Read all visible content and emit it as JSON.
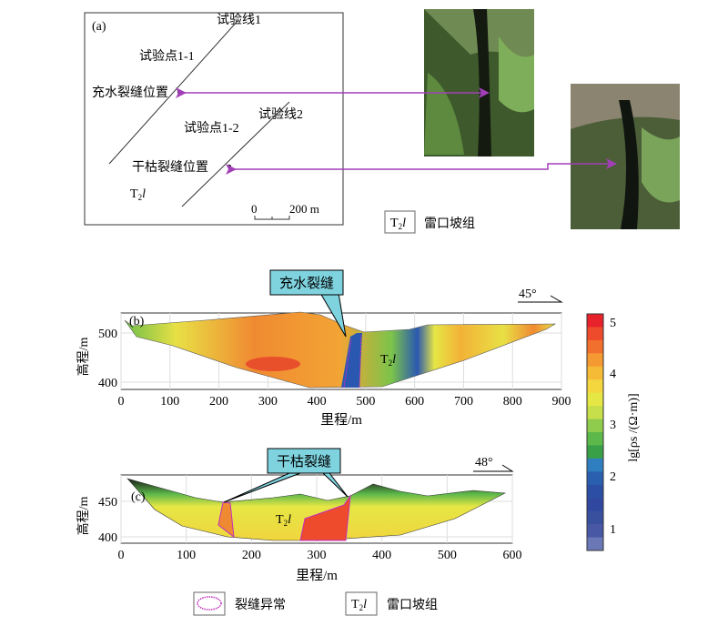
{
  "panel_a": {
    "label": "(a)",
    "line1": "试验线1",
    "line2": "试验线2",
    "point1": "试验点1-1",
    "point2": "试验点1-2",
    "fracture_wet": "充水裂缝位置",
    "fracture_dry": "干枯裂缝位置",
    "strata": "T",
    "strata_sub": "2",
    "strata_ital": "l",
    "scale_zero": "0",
    "scale_end": "200 m"
  },
  "legend_top": {
    "symbol": "T",
    "sub": "2",
    "ital": "l",
    "text": "雷口坡组"
  },
  "panel_b": {
    "label": "(b)",
    "callout": "充水裂缝",
    "dip": "45°",
    "strata": "T",
    "strata_sub": "2",
    "strata_ital": "l",
    "ylabel": "高程/m",
    "xlabel": "里程/m",
    "xticks": [
      "0",
      "100",
      "200",
      "300",
      "400",
      "500",
      "600",
      "700",
      "800",
      "900"
    ],
    "yticks": [
      "500",
      "400"
    ]
  },
  "panel_c": {
    "label": "(c)",
    "callout": "干枯裂缝",
    "dip": "48°",
    "strata": "T",
    "strata_sub": "2",
    "strata_ital": "l",
    "ylabel": "高程/m",
    "xlabel": "里程/m",
    "xticks": [
      "0",
      "100",
      "200",
      "300",
      "400",
      "500",
      "600"
    ],
    "yticks": [
      "450",
      "400"
    ]
  },
  "colorbar": {
    "label": "lg[ρs /(Ω·m)]",
    "ticks": [
      "5",
      "4",
      "3",
      "2",
      "1"
    ],
    "colors": [
      "#e8222a",
      "#ee4a2c",
      "#f2702e",
      "#f59a32",
      "#f6bb36",
      "#f4d63e",
      "#e6e645",
      "#c6df4a",
      "#8fcb4c",
      "#5cb84a",
      "#3aa048",
      "#2f7fc0",
      "#2a5fb0",
      "#2c4fa5",
      "#3048a0",
      "#38509e",
      "#4858a5",
      "#6a78b8"
    ]
  },
  "legend_bottom": [
    {
      "text": "裂缝异常"
    },
    {
      "symbol": "T",
      "sub": "2",
      "ital": "l",
      "text": "雷口坡组"
    }
  ]
}
